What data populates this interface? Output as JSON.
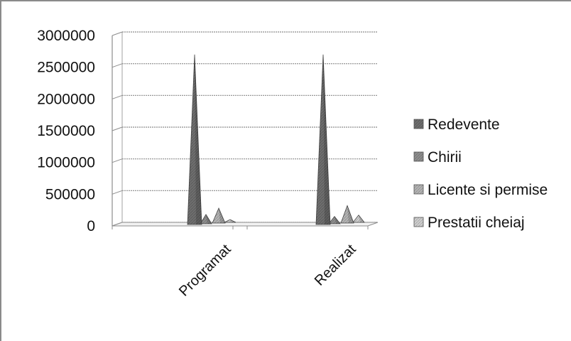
{
  "chart_data": {
    "type": "area",
    "subtype": "3d-cone-peaks",
    "title": "",
    "xlabel": "",
    "ylabel": "",
    "categories": [
      "Programat",
      "Realizat"
    ],
    "series": [
      {
        "name": "Redevente",
        "values": [
          2700000,
          2700000
        ],
        "color": "#6f6f6f"
      },
      {
        "name": "Chirii",
        "values": [
          180000,
          150000
        ],
        "color": "#8f8f8f"
      },
      {
        "name": "Licente si permise",
        "values": [
          280000,
          320000
        ],
        "color": "#b5b5b5"
      },
      {
        "name": "Prestatii cheiaj",
        "values": [
          100000,
          170000
        ],
        "color": "#d0d0d0"
      }
    ],
    "y_ticks": [
      "3000000",
      "2500000",
      "2000000",
      "1500000",
      "1000000",
      "500000",
      "0"
    ],
    "ylim": [
      0,
      3000000
    ],
    "grid": true,
    "legend_position": "right"
  }
}
